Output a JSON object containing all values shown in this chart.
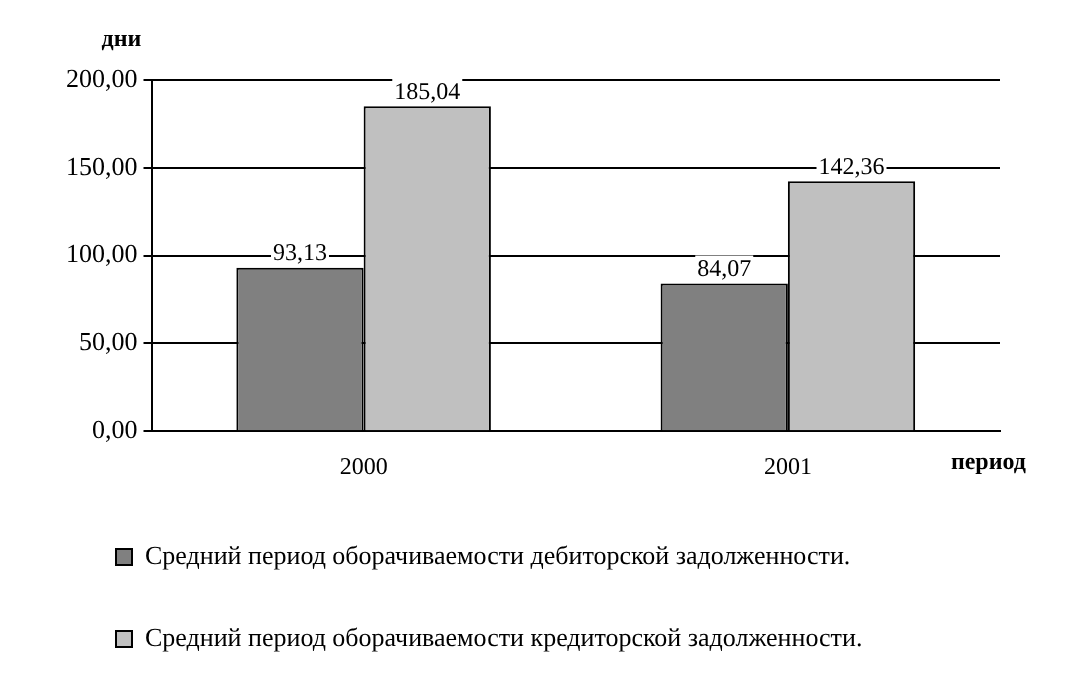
{
  "chart_data": {
    "type": "bar",
    "ylabel": "дни",
    "xlabel": "период",
    "categories": [
      "2000",
      "2001"
    ],
    "series": [
      {
        "name": "Средний период оборачиваемости дебиторской задолженности.",
        "color": "#808080",
        "values": [
          93.13,
          84.07
        ],
        "value_labels": [
          "93,13",
          "84,07"
        ]
      },
      {
        "name": "Средний период оборачиваемости кредиторской задолженности.",
        "color": "#c0c0c0",
        "values": [
          185.04,
          142.36
        ],
        "value_labels": [
          "185,04",
          "142,36"
        ]
      }
    ],
    "ylim": [
      0,
      200
    ],
    "yticks": [
      {
        "value": 0,
        "label": "0,00"
      },
      {
        "value": 50,
        "label": "50,00"
      },
      {
        "value": 100,
        "label": "100,00"
      },
      {
        "value": 150,
        "label": "150,00"
      },
      {
        "value": 200,
        "label": "200,00"
      }
    ],
    "grid": "y",
    "legend": "bottom"
  }
}
